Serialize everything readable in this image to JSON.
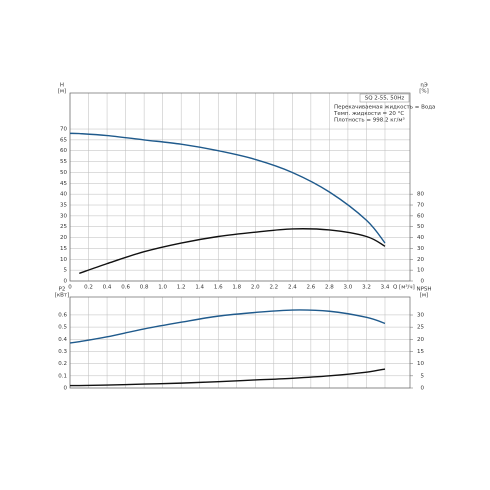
{
  "chart_data": [
    {
      "type": "line",
      "title": "SQ 2-55, 50Hz",
      "annotations": [
        "Перекачиваемая жидкость = Вода",
        "Темп. жидкости = 20 °C",
        "Плотность = 998.2 кг/м³"
      ],
      "xlabel": "Q [м³/ч]",
      "ylabel": "H",
      "yunit": "[м]",
      "y2label": "ηЭ",
      "y2unit": "[%]",
      "x": [
        0,
        0.1,
        0.4,
        0.8,
        1.2,
        1.6,
        2.0,
        2.4,
        2.8,
        3.2,
        3.4
      ],
      "series": [
        {
          "name": "H",
          "color": "#1f5a8c",
          "values": [
            68,
            67.9,
            67,
            65,
            63,
            60,
            56,
            50,
            41,
            28,
            17.5
          ]
        },
        {
          "name": "ηЭ",
          "color": "#111111",
          "axis": "y2",
          "values": [
            null,
            7,
            16,
            27,
            35,
            41,
            45,
            48,
            47,
            41,
            32
          ]
        }
      ],
      "xlim": [
        0,
        3.67
      ],
      "ylim": [
        0,
        86.6
      ],
      "y2lim": [
        0,
        173.2
      ],
      "xticks": [
        0,
        0.2,
        0.4,
        0.6,
        0.8,
        {
          "value": 1,
          "label": "1.0"
        },
        1.2,
        1.4,
        1.6,
        1.8,
        {
          "value": 2,
          "label": "2.0"
        },
        2.2,
        2.4,
        2.6,
        2.8,
        {
          "value": 3,
          "label": "3.0"
        },
        3.2,
        3.4
      ],
      "yticks": [
        0,
        5,
        10,
        15,
        20,
        25,
        30,
        35,
        40,
        45,
        50,
        55,
        60,
        65,
        70
      ],
      "y2ticks": [
        0,
        10,
        20,
        30,
        40,
        50,
        60,
        70,
        80
      ],
      "grid": true
    },
    {
      "type": "line",
      "ylabel": "P2",
      "yunit": "[кВт]",
      "y2label": "NPSH",
      "y2unit": "[м]",
      "x": [
        0,
        0.1,
        0.4,
        0.8,
        1.2,
        1.6,
        2.0,
        2.4,
        2.8,
        3.2,
        3.4
      ],
      "series": [
        {
          "name": "P2",
          "color": "#1f5a8c",
          "values": [
            0.37,
            0.38,
            0.42,
            0.485,
            0.54,
            0.59,
            0.62,
            0.64,
            0.63,
            0.58,
            0.53
          ]
        },
        {
          "name": "NPSH",
          "color": "#111111",
          "axis": "y2",
          "values": [
            1,
            1,
            1.2,
            1.6,
            2,
            2.6,
            3.3,
            4,
            5,
            6.5,
            7.8
          ]
        }
      ],
      "xlim": [
        0,
        3.67
      ],
      "ylim": [
        0,
        0.747
      ],
      "y2lim": [
        0,
        37.4
      ],
      "xticks": [
        0,
        0.2,
        0.4,
        0.6,
        0.8,
        1,
        1.2,
        1.4,
        1.6,
        1.8,
        2,
        2.2,
        2.4,
        2.6,
        2.8,
        3,
        3.2,
        3.4
      ],
      "yticks": [
        0,
        0.1,
        0.2,
        0.3,
        0.4,
        0.5,
        0.6
      ],
      "y2ticks": [
        0,
        5,
        10,
        15,
        20,
        25,
        30
      ],
      "grid": true
    }
  ]
}
